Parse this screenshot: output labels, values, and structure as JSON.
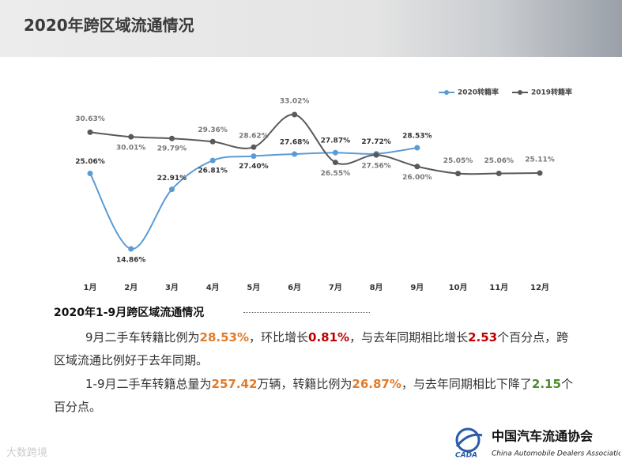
{
  "header": {
    "title": "2020年跨区域流通情况"
  },
  "chart_data": {
    "type": "line",
    "categories": [
      "1月",
      "2月",
      "3月",
      "4月",
      "5月",
      "6月",
      "7月",
      "8月",
      "9月",
      "10月",
      "11月",
      "12月"
    ],
    "series": [
      {
        "name": "2020转籍率",
        "color": "#5b9bd5",
        "values": [
          25.06,
          14.86,
          22.91,
          26.81,
          27.4,
          27.68,
          27.87,
          27.72,
          28.53,
          null,
          null,
          null
        ],
        "value_labels": [
          "25.06%",
          "14.86%",
          "22.91%",
          "26.81%",
          "27.40%",
          "27.68%",
          "27.87%",
          "27.72%",
          "28.53%",
          null,
          null,
          null
        ]
      },
      {
        "name": "2019转籍率",
        "color": "#595959",
        "values": [
          30.63,
          30.01,
          29.79,
          29.36,
          28.62,
          33.02,
          26.55,
          27.56,
          26.0,
          25.05,
          25.06,
          25.11
        ],
        "value_labels": [
          "30.63%",
          "30.01%",
          "29.79%",
          "29.36%",
          "28.62%",
          "33.02%",
          "26.55%",
          "27.56%",
          "26.00%",
          "25.05%",
          "25.06%",
          "25.11%"
        ]
      }
    ],
    "legend": "top-right",
    "grid": false
  },
  "section_title": "2020年1-9月跨区域流通情况",
  "paragraphs": [
    [
      {
        "text": "9月二手车转籍比例为"
      },
      {
        "text": "28.53%",
        "color": "#e07b2a"
      },
      {
        "text": "，环比增长"
      },
      {
        "text": "0.81%",
        "color": "#c00000"
      },
      {
        "text": "，与去年同期相比增长"
      },
      {
        "text": "2.53",
        "color": "#c00000"
      },
      {
        "text": "个百分点，跨区域流通比例好于去年同期。"
      }
    ],
    [
      {
        "text": "1-9月二手车转籍总量为"
      },
      {
        "text": "257.42",
        "color": "#e07b2a"
      },
      {
        "text": "万辆，转籍比例为"
      },
      {
        "text": "26.87%",
        "color": "#e07b2a"
      },
      {
        "text": "，与去年同期相比下降了"
      },
      {
        "text": "2.15",
        "color": "#4e8b2e"
      },
      {
        "text": "个百分点。"
      }
    ]
  ],
  "logo": {
    "name": "中国汽车流通协会",
    "abbr": "CADA",
    "english": "China Automobile Dealers Association"
  },
  "watermark": "大数跨境"
}
